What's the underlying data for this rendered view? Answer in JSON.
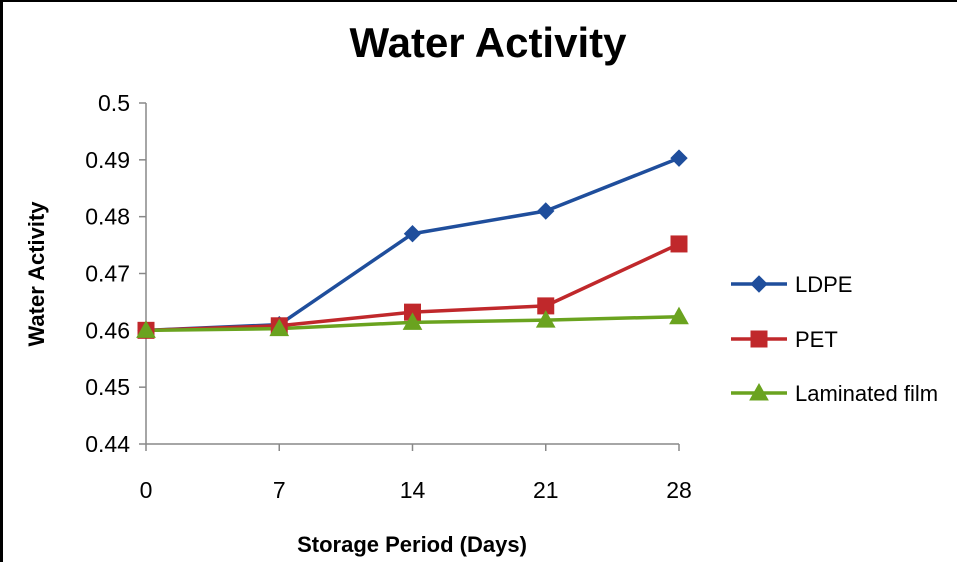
{
  "chart_data": {
    "type": "line",
    "title": "Water Activity",
    "xlabel": "Storage Period (Days)",
    "ylabel": "Water Activity",
    "x": [
      0,
      7,
      14,
      21,
      28
    ],
    "x_tick_labels": [
      "0",
      "7",
      "14",
      "21",
      "28"
    ],
    "ylim": [
      0.44,
      0.5
    ],
    "y_ticks": [
      0.44,
      0.45,
      0.46,
      0.47,
      0.48,
      0.49,
      0.5
    ],
    "y_tick_labels": [
      "0.44",
      "0.45",
      "0.46",
      "0.47",
      "0.48",
      "0.49",
      "0.5"
    ],
    "grid": false,
    "legend_position": "right",
    "series": [
      {
        "name": "LDPE",
        "color": "#1f4e9c",
        "marker": "diamond",
        "values": [
          0.46,
          0.461,
          0.477,
          0.481,
          0.4903
        ]
      },
      {
        "name": "PET",
        "color": "#c0282b",
        "marker": "square",
        "values": [
          0.46,
          0.4608,
          0.4632,
          0.4643,
          0.4752
        ]
      },
      {
        "name": "Laminated film",
        "color": "#6aa31f",
        "marker": "triangle",
        "values": [
          0.46,
          0.4603,
          0.4614,
          0.4618,
          0.4624
        ]
      }
    ]
  }
}
